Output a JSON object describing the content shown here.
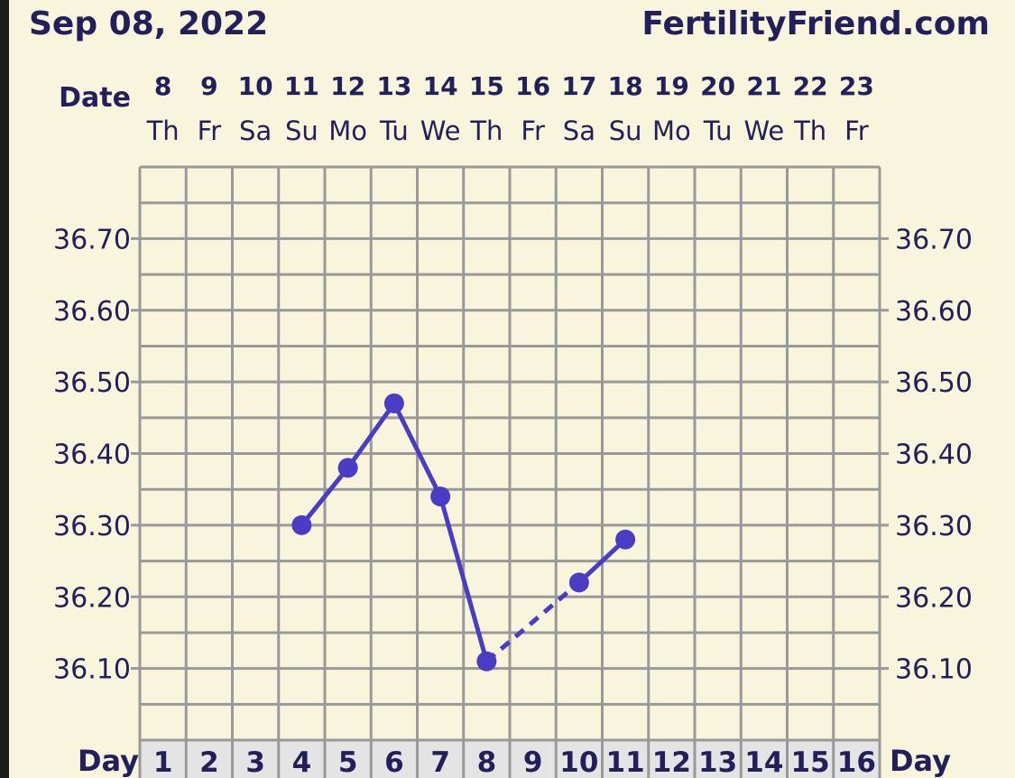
{
  "header": {
    "date": "Sep 08, 2022",
    "site": "FertilityFriend.com"
  },
  "colors": {
    "background": "#f8f5dc",
    "grid": "#999999",
    "line": "#4a3cc4",
    "text": "#221f5c",
    "day_row": "#e4e4e4"
  },
  "chart_data": {
    "type": "line",
    "date_label": "Date",
    "day_label": "Day",
    "dates": [
      "8",
      "9",
      "10",
      "11",
      "12",
      "13",
      "14",
      "15",
      "16",
      "17",
      "18",
      "19",
      "20",
      "21",
      "22",
      "23"
    ],
    "weekdays": [
      "Th",
      "Fr",
      "Sa",
      "Su",
      "Mo",
      "Tu",
      "We",
      "Th",
      "Fr",
      "Sa",
      "Su",
      "Mo",
      "Tu",
      "We",
      "Th",
      "Fr"
    ],
    "days": [
      "1",
      "2",
      "3",
      "4",
      "5",
      "6",
      "7",
      "8",
      "9",
      "10",
      "11",
      "12",
      "13",
      "14",
      "15",
      "16"
    ],
    "ylim": [
      36.0,
      36.8
    ],
    "y_ticks": [
      "36.10",
      "36.20",
      "36.30",
      "36.40",
      "36.50",
      "36.60",
      "36.70"
    ],
    "grid": true,
    "points": [
      {
        "day": 4,
        "value": 36.3
      },
      {
        "day": 5,
        "value": 36.38
      },
      {
        "day": 6,
        "value": 36.47
      },
      {
        "day": 7,
        "value": 36.34
      },
      {
        "day": 8,
        "value": 36.11
      },
      {
        "day": 10,
        "value": 36.22
      },
      {
        "day": 11,
        "value": 36.28
      }
    ],
    "dashed_gaps": [
      [
        8,
        10
      ]
    ]
  }
}
